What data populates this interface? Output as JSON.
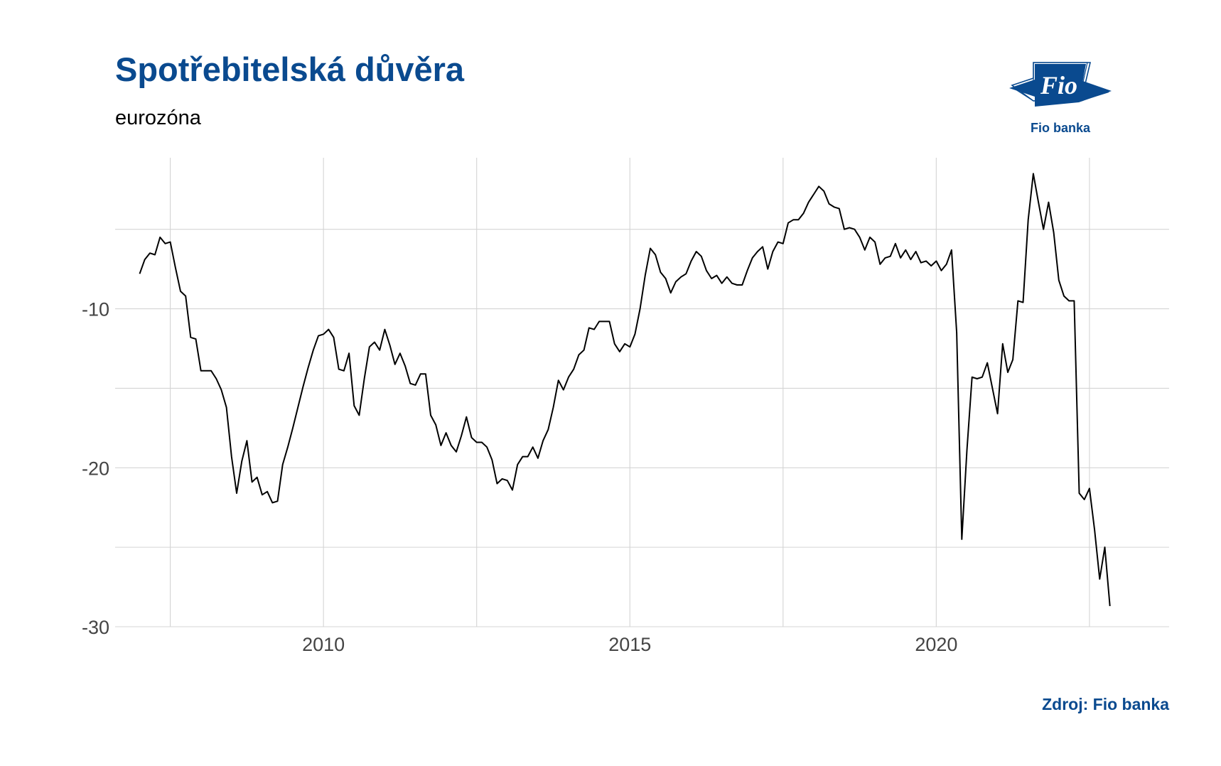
{
  "title": "Spotřebitelská důvěra",
  "subtitle": "eurozóna",
  "source": "Zdroj: Fio banka",
  "logo": {
    "mark_text": "Fio",
    "caption": "Fio banka",
    "color": "#0a4a8f"
  },
  "chart_data": {
    "type": "line",
    "title": "Spotřebitelská důvěra",
    "subtitle": "eurozóna",
    "xlabel": "",
    "ylabel": "",
    "x_ticks": [
      "2010",
      "2015",
      "2020"
    ],
    "y_ticks": [
      "-10",
      "-20",
      "-30"
    ],
    "xlim": [
      2006.6,
      2023.8
    ],
    "ylim": [
      -30,
      -0.5
    ],
    "grid": true,
    "legend": "none",
    "line_color": "#000000",
    "series": [
      {
        "points": [
          [
            "2007-01",
            -7.8
          ],
          [
            "2007-02",
            -6.9
          ],
          [
            "2007-03",
            -6.5
          ],
          [
            "2007-04",
            -6.6
          ],
          [
            "2007-05",
            -5.5
          ],
          [
            "2007-06",
            -5.9
          ],
          [
            "2007-07",
            -5.8
          ],
          [
            "2007-08",
            -7.4
          ],
          [
            "2007-09",
            -8.9
          ],
          [
            "2007-10",
            -9.2
          ],
          [
            "2007-11",
            -11.8
          ],
          [
            "2007-12",
            -11.9
          ],
          [
            "2008-01",
            -13.9
          ],
          [
            "2008-02",
            -13.9
          ],
          [
            "2008-03",
            -13.9
          ],
          [
            "2008-04",
            -14.4
          ],
          [
            "2008-05",
            -15.1
          ],
          [
            "2008-06",
            -16.2
          ],
          [
            "2008-07",
            -19.3
          ],
          [
            "2008-08",
            -21.6
          ],
          [
            "2008-09",
            -19.6
          ],
          [
            "2008-10",
            -18.3
          ],
          [
            "2008-11",
            -20.9
          ],
          [
            "2008-12",
            -20.6
          ],
          [
            "2009-01",
            -21.7
          ],
          [
            "2009-02",
            -21.5
          ],
          [
            "2009-03",
            -22.2
          ],
          [
            "2009-04",
            -22.1
          ],
          [
            "2009-05",
            -19.8
          ],
          [
            "2009-06",
            -18.7
          ],
          [
            "2009-07",
            -17.5
          ],
          [
            "2009-08",
            -16.2
          ],
          [
            "2009-09",
            -14.9
          ],
          [
            "2009-10",
            -13.7
          ],
          [
            "2009-11",
            -12.6
          ],
          [
            "2009-12",
            -11.7
          ],
          [
            "2010-01",
            -11.6
          ],
          [
            "2010-02",
            -11.3
          ],
          [
            "2010-03",
            -11.8
          ],
          [
            "2010-04",
            -13.8
          ],
          [
            "2010-05",
            -13.9
          ],
          [
            "2010-06",
            -12.8
          ],
          [
            "2010-07",
            -16.1
          ],
          [
            "2010-08",
            -16.7
          ],
          [
            "2010-09",
            -14.4
          ],
          [
            "2010-10",
            -12.4
          ],
          [
            "2010-11",
            -12.1
          ],
          [
            "2010-12",
            -12.6
          ],
          [
            "2011-01",
            -11.3
          ],
          [
            "2011-02",
            -12.3
          ],
          [
            "2011-03",
            -13.5
          ],
          [
            "2011-04",
            -12.8
          ],
          [
            "2011-05",
            -13.6
          ],
          [
            "2011-06",
            -14.7
          ],
          [
            "2011-07",
            -14.8
          ],
          [
            "2011-08",
            -14.1
          ],
          [
            "2011-09",
            -14.1
          ],
          [
            "2011-10",
            -16.7
          ],
          [
            "2011-11",
            -17.3
          ],
          [
            "2011-12",
            -18.6
          ],
          [
            "2012-01",
            -17.8
          ],
          [
            "2012-02",
            -18.6
          ],
          [
            "2012-03",
            -19.0
          ],
          [
            "2012-04",
            -18.0
          ],
          [
            "2012-05",
            -16.8
          ],
          [
            "2012-06",
            -18.1
          ],
          [
            "2012-07",
            -18.4
          ],
          [
            "2012-08",
            -18.4
          ],
          [
            "2012-09",
            -18.7
          ],
          [
            "2012-10",
            -19.5
          ],
          [
            "2012-11",
            -21.0
          ],
          [
            "2012-12",
            -20.7
          ],
          [
            "2013-01",
            -20.8
          ],
          [
            "2013-02",
            -21.4
          ],
          [
            "2013-03",
            -19.8
          ],
          [
            "2013-04",
            -19.3
          ],
          [
            "2013-05",
            -19.3
          ],
          [
            "2013-06",
            -18.7
          ],
          [
            "2013-07",
            -19.4
          ],
          [
            "2013-08",
            -18.3
          ],
          [
            "2013-09",
            -17.6
          ],
          [
            "2013-10",
            -16.2
          ],
          [
            "2013-11",
            -14.5
          ],
          [
            "2013-12",
            -15.1
          ],
          [
            "2014-01",
            -14.3
          ],
          [
            "2014-02",
            -13.8
          ],
          [
            "2014-03",
            -12.9
          ],
          [
            "2014-04",
            -12.6
          ],
          [
            "2014-05",
            -11.2
          ],
          [
            "2014-06",
            -11.3
          ],
          [
            "2014-07",
            -10.8
          ],
          [
            "2014-08",
            -10.8
          ],
          [
            "2014-09",
            -10.8
          ],
          [
            "2014-10",
            -12.2
          ],
          [
            "2014-11",
            -12.7
          ],
          [
            "2014-12",
            -12.2
          ],
          [
            "2015-01",
            -12.4
          ],
          [
            "2015-02",
            -11.6
          ],
          [
            "2015-03",
            -10.0
          ],
          [
            "2015-04",
            -7.9
          ],
          [
            "2015-05",
            -6.2
          ],
          [
            "2015-06",
            -6.6
          ],
          [
            "2015-07",
            -7.7
          ],
          [
            "2015-08",
            -8.1
          ],
          [
            "2015-09",
            -9.0
          ],
          [
            "2015-10",
            -8.3
          ],
          [
            "2015-11",
            -8.0
          ],
          [
            "2015-12",
            -7.8
          ],
          [
            "2016-01",
            -7.0
          ],
          [
            "2016-02",
            -6.4
          ],
          [
            "2016-03",
            -6.7
          ],
          [
            "2016-04",
            -7.6
          ],
          [
            "2016-05",
            -8.1
          ],
          [
            "2016-06",
            -7.9
          ],
          [
            "2016-07",
            -8.4
          ],
          [
            "2016-08",
            -8.0
          ],
          [
            "2016-09",
            -8.4
          ],
          [
            "2016-10",
            -8.5
          ],
          [
            "2016-11",
            -8.5
          ],
          [
            "2016-12",
            -7.6
          ],
          [
            "2017-01",
            -6.8
          ],
          [
            "2017-02",
            -6.4
          ],
          [
            "2017-03",
            -6.1
          ],
          [
            "2017-04",
            -7.5
          ],
          [
            "2017-05",
            -6.4
          ],
          [
            "2017-06",
            -5.8
          ],
          [
            "2017-07",
            -5.9
          ],
          [
            "2017-08",
            -4.6
          ],
          [
            "2017-09",
            -4.4
          ],
          [
            "2017-10",
            -4.4
          ],
          [
            "2017-11",
            -4.0
          ],
          [
            "2017-12",
            -3.3
          ],
          [
            "2018-01",
            -2.8
          ],
          [
            "2018-02",
            -2.3
          ],
          [
            "2018-03",
            -2.6
          ],
          [
            "2018-04",
            -3.4
          ],
          [
            "2018-05",
            -3.6
          ],
          [
            "2018-06",
            -3.7
          ],
          [
            "2018-07",
            -5.0
          ],
          [
            "2018-08",
            -4.9
          ],
          [
            "2018-09",
            -5.0
          ],
          [
            "2018-10",
            -5.5
          ],
          [
            "2018-11",
            -6.3
          ],
          [
            "2018-12",
            -5.5
          ],
          [
            "2019-01",
            -5.8
          ],
          [
            "2019-02",
            -7.2
          ],
          [
            "2019-03",
            -6.8
          ],
          [
            "2019-04",
            -6.7
          ],
          [
            "2019-05",
            -5.9
          ],
          [
            "2019-06",
            -6.8
          ],
          [
            "2019-07",
            -6.3
          ],
          [
            "2019-08",
            -6.9
          ],
          [
            "2019-09",
            -6.4
          ],
          [
            "2019-10",
            -7.1
          ],
          [
            "2019-11",
            -7.0
          ],
          [
            "2019-12",
            -7.3
          ],
          [
            "2020-01",
            -7.0
          ],
          [
            "2020-02",
            -7.6
          ],
          [
            "2020-03",
            -7.2
          ],
          [
            "2020-04",
            -6.3
          ],
          [
            "2020-05",
            -11.5
          ],
          [
            "2020-06",
            -24.5
          ],
          [
            "2020-07",
            -18.9
          ],
          [
            "2020-08",
            -14.3
          ],
          [
            "2020-09",
            -14.4
          ],
          [
            "2020-10",
            -14.3
          ],
          [
            "2020-11",
            -13.4
          ],
          [
            "2020-12",
            -15.0
          ],
          [
            "2021-01",
            -16.6
          ],
          [
            "2021-02",
            -12.2
          ],
          [
            "2021-03",
            -14.0
          ],
          [
            "2021-04",
            -13.2
          ],
          [
            "2021-05",
            -9.5
          ],
          [
            "2021-06",
            -9.6
          ],
          [
            "2021-07",
            -4.4
          ],
          [
            "2021-08",
            -1.5
          ],
          [
            "2021-09",
            -3.3
          ],
          [
            "2021-10",
            -5.0
          ],
          [
            "2021-11",
            -3.3
          ],
          [
            "2021-12",
            -5.2
          ],
          [
            "2022-01",
            -8.2
          ],
          [
            "2022-02",
            -9.2
          ],
          [
            "2022-03",
            -9.5
          ],
          [
            "2022-04",
            -9.5
          ],
          [
            "2022-05",
            -21.6
          ],
          [
            "2022-06",
            -22.0
          ],
          [
            "2022-07",
            -21.3
          ],
          [
            "2022-08",
            -23.9
          ],
          [
            "2022-09",
            -27.0
          ],
          [
            "2022-10",
            -25.0
          ],
          [
            "2022-11",
            -28.7
          ]
        ]
      }
    ]
  }
}
